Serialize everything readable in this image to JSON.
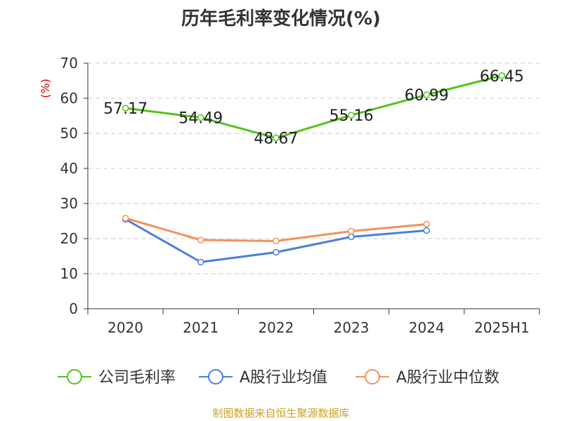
{
  "title": "历年毛利率变化情况(%)",
  "footer": {
    "text": "制图数据来自恒生聚源数据库",
    "color": "#c9a227"
  },
  "chart_data": {
    "type": "line",
    "title": "历年毛利率变化情况(%)",
    "ylabel": "(%)",
    "xlabel": "",
    "categories": [
      "2020",
      "2021",
      "2022",
      "2023",
      "2024",
      "2025H1"
    ],
    "ylim": [
      0,
      70
    ],
    "yticks": [
      0,
      10,
      20,
      30,
      40,
      50,
      60,
      70
    ],
    "grid": true,
    "legend_position": "bottom",
    "series": [
      {
        "name": "公司毛利率",
        "color": "#52c41a",
        "show_labels": true,
        "values": [
          57.17,
          54.49,
          48.67,
          55.16,
          60.99,
          66.45
        ],
        "labels": [
          "57.17",
          "54.49",
          "48.67",
          "55.16",
          "60.99",
          "66.45"
        ]
      },
      {
        "name": "A股行业均值",
        "color": "#4a7fe0",
        "show_labels": false,
        "values": [
          25.5,
          13.3,
          16.1,
          20.5,
          22.3,
          null
        ]
      },
      {
        "name": "A股行业中位数",
        "color": "#f5905a",
        "show_labels": false,
        "values": [
          25.8,
          19.6,
          19.3,
          22.1,
          24.1,
          null
        ]
      }
    ]
  }
}
